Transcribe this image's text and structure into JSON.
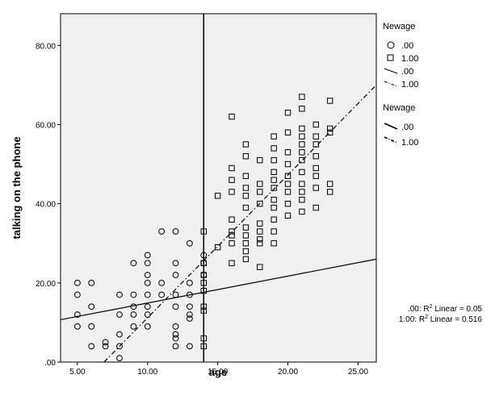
{
  "chart_data": {
    "type": "scatter",
    "title": "",
    "xlabel": "age",
    "ylabel": "talking on the phone",
    "xlim": [
      3.8,
      26.3
    ],
    "ylim": [
      0,
      88
    ],
    "xticks": [
      5,
      10,
      15,
      20,
      25
    ],
    "xtick_labels": [
      "5.00",
      "10.00",
      "15.00",
      "20.00",
      "25.00"
    ],
    "yticks": [
      0,
      20,
      40,
      60,
      80
    ],
    "ytick_labels": [
      ".00",
      "20.00",
      "40.00",
      "60.00",
      "80.00"
    ],
    "grid": false,
    "background_color": "#f0f0f0",
    "reference_line": {
      "axis": "x",
      "value": 14
    },
    "series": [
      {
        "name": ".00",
        "marker": "circle",
        "points": [
          [
            5,
            20
          ],
          [
            5,
            17
          ],
          [
            5,
            12
          ],
          [
            5,
            9
          ],
          [
            6,
            20
          ],
          [
            6,
            14
          ],
          [
            6,
            9
          ],
          [
            6,
            4
          ],
          [
            7,
            5
          ],
          [
            7,
            4
          ],
          [
            8,
            17
          ],
          [
            8,
            12
          ],
          [
            8,
            7
          ],
          [
            8,
            4
          ],
          [
            8,
            1
          ],
          [
            9,
            25
          ],
          [
            9,
            17
          ],
          [
            9,
            14
          ],
          [
            9,
            12
          ],
          [
            9,
            9
          ],
          [
            10,
            27
          ],
          [
            10,
            25
          ],
          [
            10,
            22
          ],
          [
            10,
            20
          ],
          [
            10,
            17
          ],
          [
            10,
            14
          ],
          [
            10,
            12
          ],
          [
            10,
            9
          ],
          [
            11,
            33
          ],
          [
            11,
            20
          ],
          [
            11,
            17
          ],
          [
            12,
            33
          ],
          [
            12,
            25
          ],
          [
            12,
            22
          ],
          [
            12,
            17
          ],
          [
            12,
            14
          ],
          [
            12,
            9
          ],
          [
            12,
            7
          ],
          [
            12,
            6
          ],
          [
            12,
            4
          ],
          [
            13,
            30
          ],
          [
            13,
            20
          ],
          [
            13,
            17
          ],
          [
            13,
            14
          ],
          [
            13,
            12
          ],
          [
            13,
            11
          ],
          [
            13,
            4
          ],
          [
            14,
            27
          ],
          [
            14,
            25
          ],
          [
            14,
            22
          ]
        ]
      },
      {
        "name": "1.00",
        "marker": "square",
        "points": [
          [
            14,
            33
          ],
          [
            14,
            25
          ],
          [
            14,
            22
          ],
          [
            14,
            20
          ],
          [
            14,
            18
          ],
          [
            14,
            14
          ],
          [
            14,
            13
          ],
          [
            14,
            6
          ],
          [
            14,
            4
          ],
          [
            15,
            42
          ],
          [
            15,
            29
          ],
          [
            16,
            62
          ],
          [
            16,
            49
          ],
          [
            16,
            46
          ],
          [
            16,
            43
          ],
          [
            16,
            36
          ],
          [
            16,
            33
          ],
          [
            16,
            32
          ],
          [
            16,
            30
          ],
          [
            16,
            25
          ],
          [
            17,
            55
          ],
          [
            17,
            52
          ],
          [
            17,
            47
          ],
          [
            17,
            44
          ],
          [
            17,
            42
          ],
          [
            17,
            39
          ],
          [
            17,
            34
          ],
          [
            17,
            32
          ],
          [
            17,
            30
          ],
          [
            17,
            28
          ],
          [
            17,
            26
          ],
          [
            18,
            51
          ],
          [
            18,
            45
          ],
          [
            18,
            43
          ],
          [
            18,
            40
          ],
          [
            18,
            35
          ],
          [
            18,
            33
          ],
          [
            18,
            31
          ],
          [
            18,
            30
          ],
          [
            18,
            24
          ],
          [
            19,
            57
          ],
          [
            19,
            54
          ],
          [
            19,
            51
          ],
          [
            19,
            48
          ],
          [
            19,
            46
          ],
          [
            19,
            44
          ],
          [
            19,
            41
          ],
          [
            19,
            39
          ],
          [
            19,
            36
          ],
          [
            19,
            33
          ],
          [
            19,
            30
          ],
          [
            20,
            63
          ],
          [
            20,
            58
          ],
          [
            20,
            53
          ],
          [
            20,
            50
          ],
          [
            20,
            47
          ],
          [
            20,
            45
          ],
          [
            20,
            43
          ],
          [
            20,
            40
          ],
          [
            20,
            37
          ],
          [
            21,
            67
          ],
          [
            21,
            64
          ],
          [
            21,
            59
          ],
          [
            21,
            57
          ],
          [
            21,
            55
          ],
          [
            21,
            53
          ],
          [
            21,
            51
          ],
          [
            21,
            48
          ],
          [
            21,
            45
          ],
          [
            21,
            43
          ],
          [
            21,
            41
          ],
          [
            21,
            38
          ],
          [
            22,
            60
          ],
          [
            22,
            57
          ],
          [
            22,
            55
          ],
          [
            22,
            52
          ],
          [
            22,
            49
          ],
          [
            22,
            47
          ],
          [
            22,
            44
          ],
          [
            22,
            39
          ],
          [
            23,
            66
          ],
          [
            23,
            59
          ],
          [
            23,
            58
          ],
          [
            23,
            45
          ],
          [
            23,
            43
          ]
        ]
      }
    ],
    "fit_lines": [
      {
        "name": ".00",
        "style": "solid",
        "r2_label": ".00: R² Linear = 0.05",
        "endpoints": [
          [
            3.8,
            10.7
          ],
          [
            26.3,
            26.0
          ]
        ]
      },
      {
        "name": "1.00",
        "style": "dashdot",
        "r2_label": "1.00: R² Linear = 0.516",
        "endpoints": [
          [
            6.9,
            0
          ],
          [
            26.3,
            70.0
          ]
        ]
      }
    ]
  },
  "legend": {
    "title_markers": "Newage",
    "marker_items": [
      {
        "label": ".00",
        "marker": "circle"
      },
      {
        "label": "1.00",
        "marker": "square"
      }
    ],
    "line_items": [
      {
        "label": ".00",
        "style": "solid"
      },
      {
        "label": "1.00",
        "style": "dashdot"
      }
    ],
    "title_lines": "Newage",
    "line_items_2": [
      {
        "label": ".00",
        "style": "solid"
      },
      {
        "label": "1.00",
        "style": "dashdot"
      }
    ]
  },
  "r2": {
    "line_0": ".00: R",
    "line_0_rest": " Linear = 0.05",
    "line_1": "1.00: R",
    "line_1_rest": " Linear = 0.516",
    "sup": "2"
  }
}
